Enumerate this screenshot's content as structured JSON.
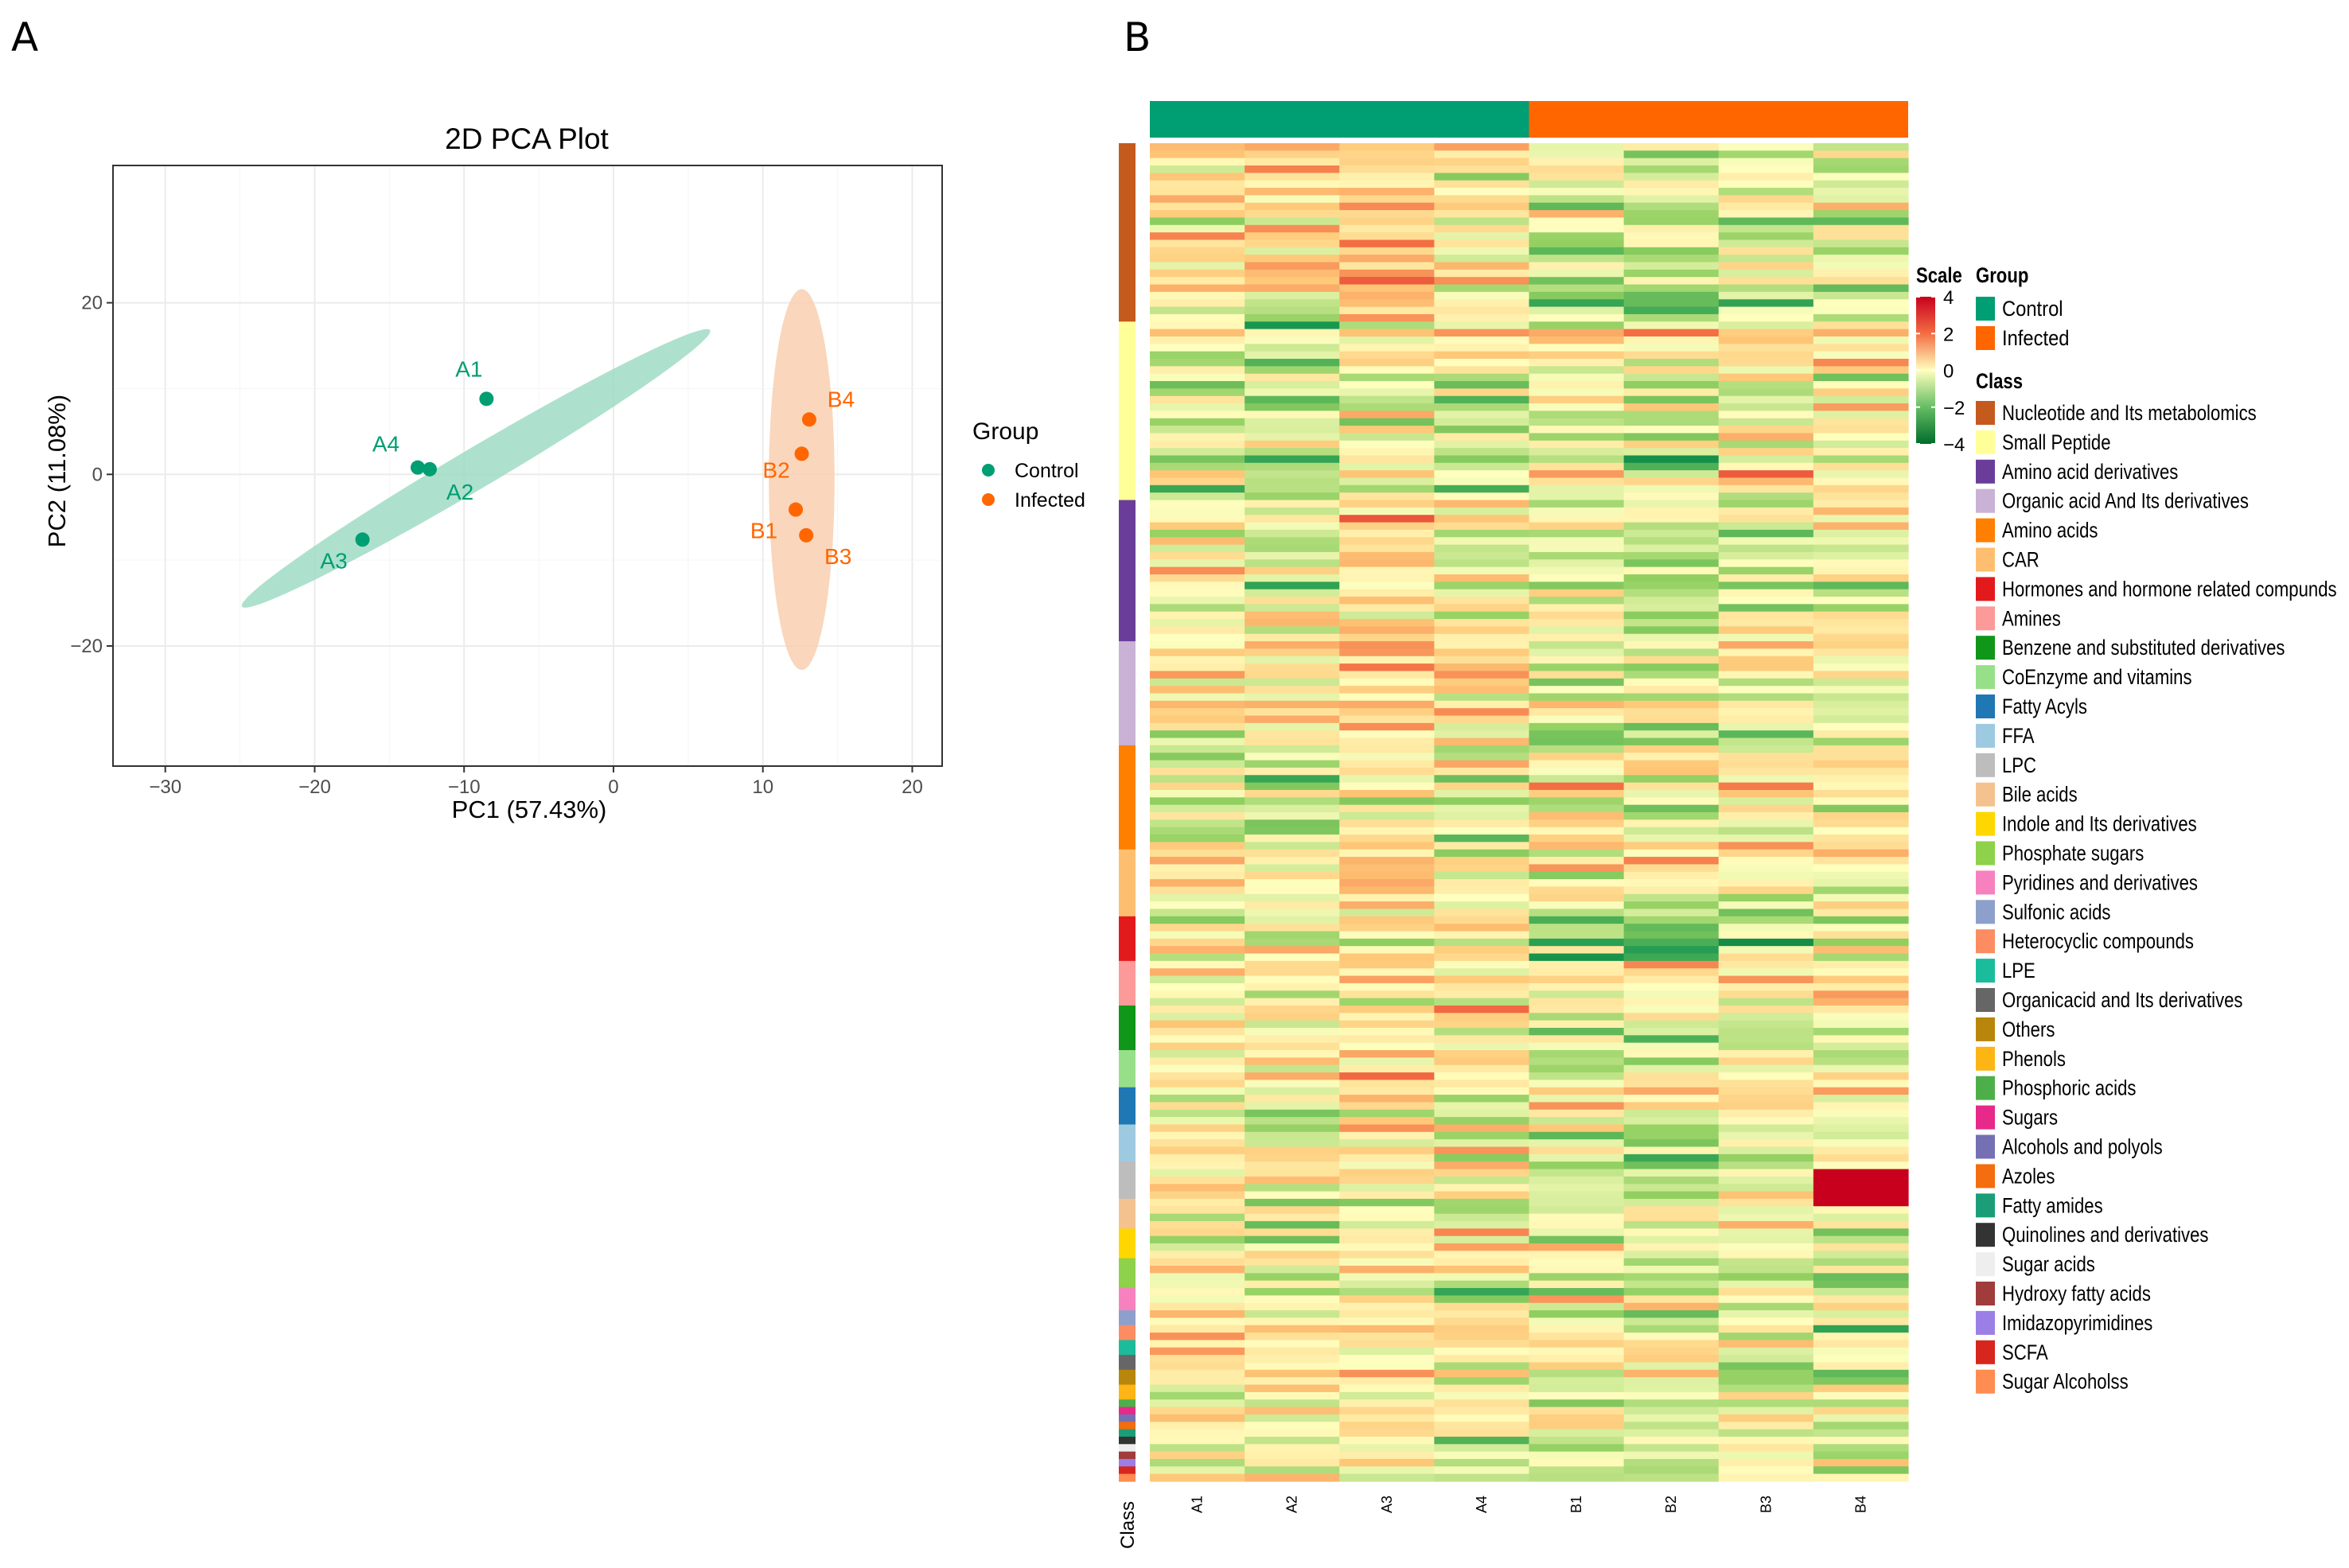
{
  "panel_a_label": "A",
  "panel_b_label": "B",
  "colors": {
    "control": "#009E73",
    "infected": "#FF6600",
    "control_ellipse": "#9FDCC6",
    "infected_ellipse": "#F9CFB0",
    "grid": "#EBEBEB",
    "heat_low": "#006D2C",
    "heat_mid": "#FFFFBF",
    "heat_high": "#C8001E"
  },
  "chart_data": [
    {
      "type": "scatter",
      "title": "2D PCA Plot",
      "xlabel": "PC1 (57.43%)",
      "ylabel": "PC2 (11.08%)",
      "xlim": [
        -33.5,
        22
      ],
      "ylim": [
        -34,
        36
      ],
      "xticks": [
        -30,
        -20,
        -10,
        0,
        10,
        20
      ],
      "yticks": [
        -20,
        0,
        20
      ],
      "xtick_labels": [
        "−30",
        "−20",
        "−10",
        "0",
        "10",
        "20"
      ],
      "ytick_labels": [
        "−20",
        "0",
        "20"
      ],
      "grid": true,
      "legend": {
        "title": "Group",
        "position": "right",
        "entries": [
          "Control",
          "Infected"
        ]
      },
      "series": [
        {
          "name": "Control",
          "points": [
            {
              "label": "A1",
              "x": -8.5,
              "y": 8.8
            },
            {
              "label": "A2",
              "x": -12.3,
              "y": 0.6
            },
            {
              "label": "A3",
              "x": -16.8,
              "y": -7.6
            },
            {
              "label": "A4",
              "x": -13.1,
              "y": 0.8
            }
          ],
          "ellipse": {
            "cx": -9.2,
            "cy": 0.7,
            "rx": 22.5,
            "ry": 1.9,
            "angle_deg": 46
          }
        },
        {
          "name": "Infected",
          "points": [
            {
              "label": "B1",
              "x": 12.2,
              "y": -4.1
            },
            {
              "label": "B2",
              "x": 12.6,
              "y": 2.4
            },
            {
              "label": "B3",
              "x": 12.9,
              "y": -7.1
            },
            {
              "label": "B4",
              "x": 13.1,
              "y": 6.4
            }
          ],
          "ellipse": {
            "cx": 12.6,
            "cy": -0.6,
            "rx": 2.2,
            "ry": 22.2,
            "angle_deg": 0
          }
        }
      ]
    },
    {
      "type": "heatmap",
      "columns": [
        "A1",
        "A2",
        "A3",
        "A4",
        "B1",
        "B2",
        "B3",
        "B4"
      ],
      "column_groups": [
        "Control",
        "Control",
        "Control",
        "Control",
        "Infected",
        "Infected",
        "Infected",
        "Infected"
      ],
      "row_annotation_label": "Class",
      "scale": {
        "title": "Scale",
        "ticks": [
          4,
          2,
          0,
          -2,
          -4
        ],
        "tick_labels": [
          "4",
          "2",
          "0",
          "−2",
          "−4"
        ],
        "min": -4,
        "max": 4
      },
      "group_legend": {
        "title": "Group",
        "entries": [
          {
            "name": "Control",
            "color": "#009E73"
          },
          {
            "name": "Infected",
            "color": "#FF6600"
          }
        ]
      },
      "class_legend": {
        "title": "Class",
        "entries": [
          {
            "name": "Nucleotide and Its metabolomics",
            "color": "#C45A1E",
            "rows": 24
          },
          {
            "name": "Small Peptide",
            "color": "#FFFF99",
            "rows": 24
          },
          {
            "name": "Amino acid derivatives",
            "color": "#6A3D9A",
            "rows": 19
          },
          {
            "name": "Organic acid And Its derivatives",
            "color": "#CAB2D6",
            "rows": 14
          },
          {
            "name": "Amino acids",
            "color": "#FF7F00",
            "rows": 14
          },
          {
            "name": "CAR",
            "color": "#FDBF6F",
            "rows": 9
          },
          {
            "name": "Hormones and hormone related compunds",
            "color": "#E31A1C",
            "rows": 6
          },
          {
            "name": "Amines",
            "color": "#FB9A99",
            "rows": 6
          },
          {
            "name": "Benzene and substituted derivatives",
            "color": "#109618",
            "rows": 6
          },
          {
            "name": "CoEnzyme and vitamins",
            "color": "#98DF8A",
            "rows": 5
          },
          {
            "name": "Fatty Acyls",
            "color": "#1F77B4",
            "rows": 5
          },
          {
            "name": "FFA",
            "color": "#9ECAE1",
            "rows": 5
          },
          {
            "name": "LPC",
            "color": "#BDBDBD",
            "rows": 5
          },
          {
            "name": "Bile acids",
            "color": "#F4C28F",
            "rows": 4
          },
          {
            "name": "Indole and Its derivatives",
            "color": "#FFD700",
            "rows": 4
          },
          {
            "name": "Phosphate sugars",
            "color": "#8ED14A",
            "rows": 4
          },
          {
            "name": "Pyridines and derivatives",
            "color": "#F781BF",
            "rows": 3
          },
          {
            "name": "Sulfonic acids",
            "color": "#8DA0CB",
            "rows": 2
          },
          {
            "name": "Heterocyclic compounds",
            "color": "#FC8D62",
            "rows": 2
          },
          {
            "name": "LPE",
            "color": "#1BBC9B",
            "rows": 2
          },
          {
            "name": "Organicacid and Its derivatives",
            "color": "#666666",
            "rows": 2
          },
          {
            "name": "Others",
            "color": "#B8860B",
            "rows": 2
          },
          {
            "name": "Phenols",
            "color": "#FDB515",
            "rows": 2
          },
          {
            "name": "Phosphoric acids",
            "color": "#4DAF4A",
            "rows": 1
          },
          {
            "name": "Sugars",
            "color": "#E7298A",
            "rows": 1
          },
          {
            "name": "Alcohols and polyols",
            "color": "#7570B3",
            "rows": 1
          },
          {
            "name": "Azoles",
            "color": "#F46D0E",
            "rows": 1
          },
          {
            "name": "Fatty amides",
            "color": "#1B9E77",
            "rows": 1
          },
          {
            "name": "Quinolines and derivatives",
            "color": "#333333",
            "rows": 1
          },
          {
            "name": "Sugar acids",
            "color": "#EEEEEE",
            "rows": 1
          },
          {
            "name": "Hydroxy fatty acids",
            "color": "#A03C3C",
            "rows": 1
          },
          {
            "name": "Imidazopyrimidines",
            "color": "#9B7FE6",
            "rows": 1
          },
          {
            "name": "SCFA",
            "color": "#D7261E",
            "rows": 1
          },
          {
            "name": "Sugar Alcoholss",
            "color": "#FF8C50",
            "rows": 1
          }
        ]
      }
    }
  ]
}
